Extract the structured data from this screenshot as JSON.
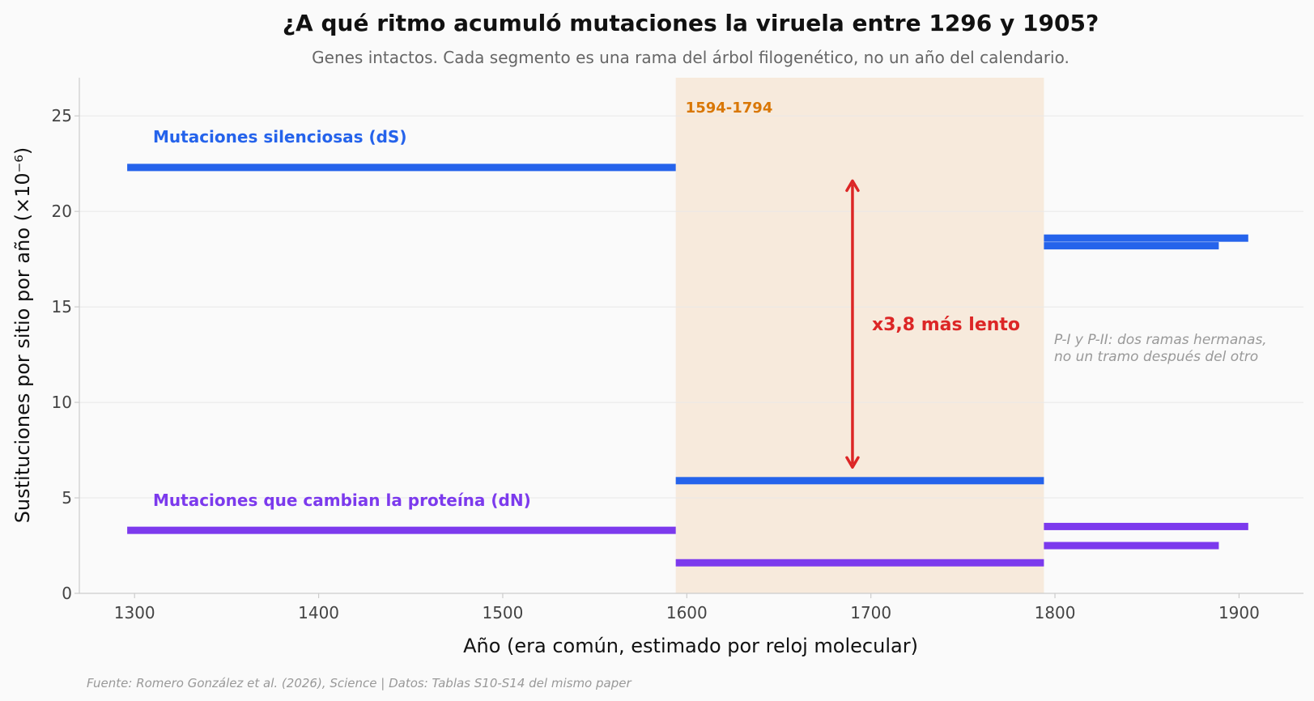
{
  "chart_data": {
    "type": "line",
    "title": "¿A qué ritmo acumuló mutaciones la viruela entre 1296 y 1905?",
    "subtitle": "Genes intactos. Cada segmento es una rama del árbol filogenético, no un año del calendario.",
    "xlabel": "Año (era común, estimado por reloj molecular)",
    "ylabel": "Sustituciones por sitio por año (×10⁻⁶)",
    "xlim": [
      1270,
      1935
    ],
    "ylim": [
      0,
      27
    ],
    "xticks": [
      1300,
      1400,
      1500,
      1600,
      1700,
      1800,
      1900
    ],
    "yticks": [
      0,
      5,
      10,
      15,
      20,
      25
    ],
    "grid": "horizontal",
    "highlight_period": {
      "x_start": 1594,
      "x_end": 1794,
      "label": "1594-1794",
      "color": "#f5e3d0"
    },
    "series": [
      {
        "name": "Mutaciones silenciosas (dS)",
        "color": "#2563eb",
        "segments": [
          {
            "x_start": 1296,
            "x_end": 1594,
            "value": 22.3
          },
          {
            "x_start": 1594,
            "x_end": 1794,
            "value": 5.9
          },
          {
            "x_start": 1794,
            "x_end": 1905,
            "value": 18.6
          },
          {
            "x_start": 1794,
            "x_end": 1889,
            "value": 18.2
          }
        ]
      },
      {
        "name": "Mutaciones que cambian la proteína (dN)",
        "color": "#7c3aed",
        "segments": [
          {
            "x_start": 1296,
            "x_end": 1594,
            "value": 3.3
          },
          {
            "x_start": 1594,
            "x_end": 1794,
            "value": 1.6
          },
          {
            "x_start": 1794,
            "x_end": 1905,
            "value": 3.5
          },
          {
            "x_start": 1794,
            "x_end": 1889,
            "value": 2.5
          }
        ]
      }
    ],
    "annotations": {
      "ratio": {
        "text": "x3,8 más lento",
        "color": "#dc2626",
        "x": 1690,
        "y_from": 21.6,
        "y_to": 6.6
      },
      "note_lines": [
        "P-I y P-II: dos ramas hermanas,",
        "no un tramo después del otro"
      ]
    },
    "source": "Fuente: Romero González et al. (2026), Science | Datos: Tablas S10-S14 del mismo paper"
  }
}
